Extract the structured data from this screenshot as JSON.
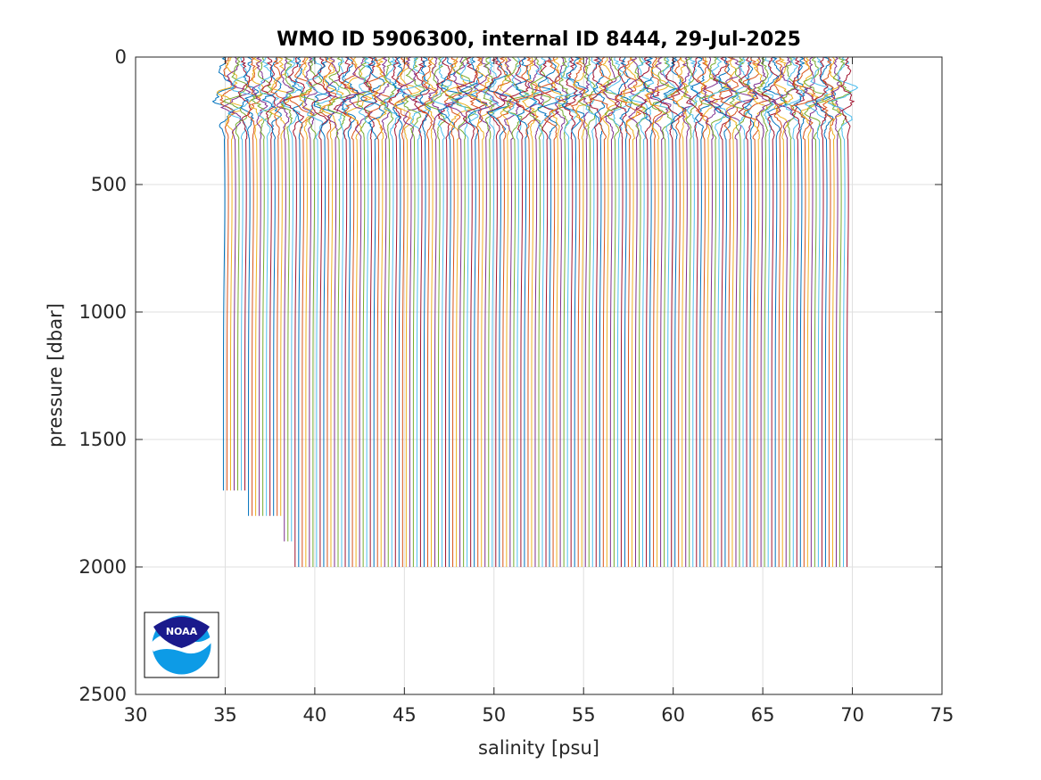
{
  "chart_data": {
    "type": "line",
    "title": "WMO ID 5906300, internal ID 8444, 29-Jul-2025",
    "xlabel": "salinity [psu]",
    "ylabel": "pressure [dbar]",
    "xlim": [
      30,
      75
    ],
    "ylim": [
      0,
      2500
    ],
    "y_reversed": true,
    "xticks": [
      30,
      35,
      40,
      45,
      50,
      55,
      60,
      65,
      70,
      75
    ],
    "yticks": [
      0,
      500,
      1000,
      1500,
      2000,
      2500
    ],
    "grid": true,
    "legend": "none",
    "series_description": "~175 stacked salinity profiles, each offset by ~0.2 psu from the previous",
    "profile_count": 175,
    "offset_step_psu": 0.2,
    "first_profile_deep_salinity": 34.9,
    "profile_max_pressure_groups": [
      {
        "from_profile": 0,
        "to_profile": 6,
        "max_pressure": 1700
      },
      {
        "from_profile": 7,
        "to_profile": 16,
        "max_pressure": 1800
      },
      {
        "from_profile": 17,
        "to_profile": 19,
        "max_pressure": 1900
      },
      {
        "from_profile": 20,
        "to_profile": 174,
        "max_pressure": 2000
      }
    ],
    "colors": [
      "#0072BD",
      "#D95319",
      "#EDB120",
      "#7E2F8E",
      "#77AC30",
      "#4DBEEE",
      "#A2142F"
    ]
  },
  "logo": {
    "text": "NOAA",
    "colors": {
      "navy": "#1a1a8c",
      "blue": "#0d9be6",
      "white": "#ffffff"
    }
  }
}
